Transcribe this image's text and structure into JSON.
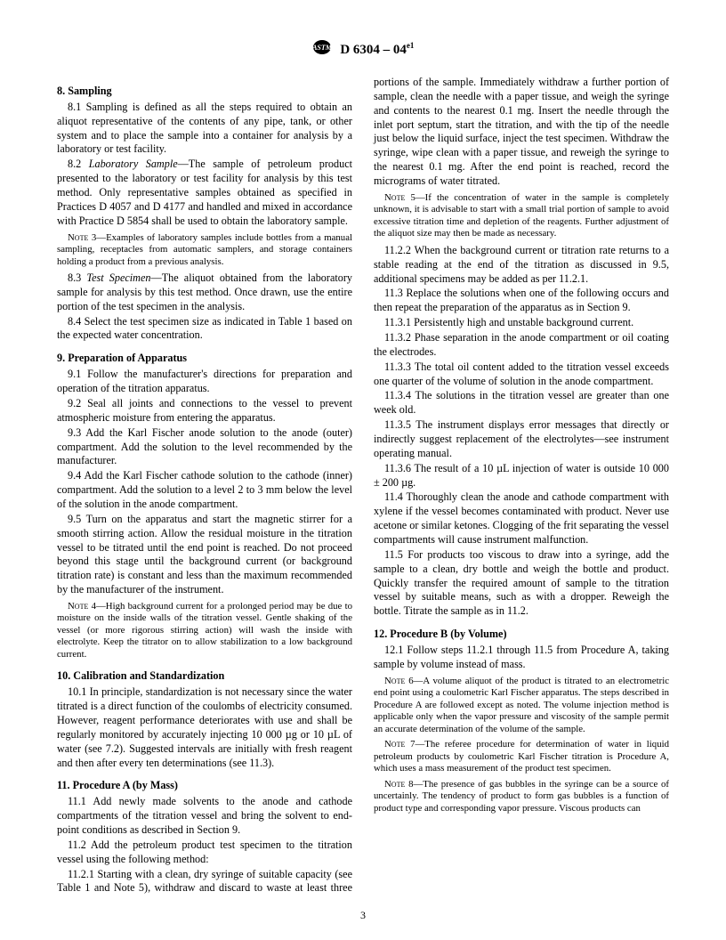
{
  "header": {
    "designation": "D 6304 – 04",
    "superscript": "e1"
  },
  "page_number": "3",
  "sections": [
    {
      "heading": "8. Sampling",
      "paras": [
        {
          "type": "body",
          "text": "8.1 Sampling is defined as all the steps required to obtain an aliquot representative of the contents of any pipe, tank, or other system and to place the sample into a container for analysis by a laboratory or test facility."
        },
        {
          "type": "body",
          "html": "8.2 <span class=\"ital\">Laboratory Sample</span>—The sample of petroleum product presented to the laboratory or test facility for analysis by this test method. Only representative samples obtained as specified in Practices D 4057 and D 4177 and handled and mixed in accordance with Practice D 5854 shall be used to obtain the laboratory sample."
        },
        {
          "type": "note",
          "html": "<span class=\"smallcaps\">Note</span> 3—Examples of laboratory samples include bottles from a manual sampling, receptacles from automatic samplers, and storage containers holding a product from a previous analysis."
        },
        {
          "type": "body",
          "html": "8.3 <span class=\"ital\">Test Specimen</span>—The aliquot obtained from the laboratory sample for analysis by this test method. Once drawn, use the entire portion of the test specimen in the analysis."
        },
        {
          "type": "body",
          "text": "8.4 Select the test specimen size as indicated in Table 1 based on the expected water concentration."
        }
      ]
    },
    {
      "heading": "9. Preparation of Apparatus",
      "paras": [
        {
          "type": "body",
          "text": "9.1 Follow the manufacturer's directions for preparation and operation of the titration apparatus."
        },
        {
          "type": "body",
          "text": "9.2 Seal all joints and connections to the vessel to prevent atmospheric moisture from entering the apparatus."
        },
        {
          "type": "body",
          "text": "9.3 Add the Karl Fischer anode solution to the anode (outer) compartment. Add the solution to the level recommended by the manufacturer."
        },
        {
          "type": "body",
          "text": "9.4 Add the Karl Fischer cathode solution to the cathode (inner) compartment. Add the solution to a level 2 to 3 mm below the level of the solution in the anode compartment."
        },
        {
          "type": "body",
          "text": "9.5 Turn on the apparatus and start the magnetic stirrer for a smooth stirring action. Allow the residual moisture in the titration vessel to be titrated until the end point is reached. Do not proceed beyond this stage until the background current (or background titration rate) is constant and less than the maximum recommended by the manufacturer of the instrument."
        },
        {
          "type": "note",
          "html": "<span class=\"smallcaps\">Note</span> 4—High background current for a prolonged period may be due to moisture on the inside walls of the titration vessel. Gentle shaking of the vessel (or more rigorous stirring action) will wash the inside with electrolyte. Keep the titrator on to allow stabilization to a low background current."
        }
      ]
    },
    {
      "heading": "10. Calibration and Standardization",
      "paras": [
        {
          "type": "body",
          "text": "10.1 In principle, standardization is not necessary since the water titrated is a direct function of the coulombs of electricity consumed. However, reagent performance deteriorates with use and shall be regularly monitored by accurately injecting 10 000 µg or 10 µL of water (see 7.2). Suggested intervals are initially with fresh reagent and then after every ten determinations (see 11.3)."
        }
      ]
    },
    {
      "heading": "11. Procedure A (by Mass)",
      "paras": [
        {
          "type": "body",
          "text": "11.1 Add newly made solvents to the anode and cathode compartments of the titration vessel and bring the solvent to end-point conditions as described in Section 9."
        },
        {
          "type": "body",
          "text": "11.2 Add the petroleum product test specimen to the titration vessel using the following method:"
        },
        {
          "type": "body",
          "text": "11.2.1 Starting with a clean, dry syringe of suitable capacity (see Table 1 and Note 5), withdraw and discard to waste at least three portions of the sample. Immediately withdraw a further portion of sample, clean the needle with a paper tissue, and weigh the syringe and contents to the nearest 0.1 mg. Insert the needle through the inlet port septum, start the titration, and with the tip of the needle just below the liquid surface, inject the test specimen. Withdraw the syringe, wipe clean with a paper tissue, and reweigh the syringe to the nearest 0.1 mg. After the end point is reached, record the micrograms of water titrated."
        },
        {
          "type": "note",
          "html": "<span class=\"smallcaps\">Note</span> 5—If the concentration of water in the sample is completely unknown, it is advisable to start with a small trial portion of sample to avoid excessive titration time and depletion of the reagents. Further adjustment of the aliquot size may then be made as necessary."
        },
        {
          "type": "body",
          "text": "11.2.2 When the background current or titration rate returns to a stable reading at the end of the titration as discussed in 9.5, additional specimens may be added as per 11.2.1."
        },
        {
          "type": "body",
          "text": "11.3 Replace the solutions when one of the following occurs and then repeat the preparation of the apparatus as in Section 9."
        },
        {
          "type": "body",
          "text": "11.3.1 Persistently high and unstable background current."
        },
        {
          "type": "body",
          "text": "11.3.2 Phase separation in the anode compartment or oil coating the electrodes."
        },
        {
          "type": "body",
          "text": "11.3.3 The total oil content added to the titration vessel exceeds one quarter of the volume of solution in the anode compartment."
        },
        {
          "type": "body",
          "text": "11.3.4 The solutions in the titration vessel are greater than one week old."
        },
        {
          "type": "body",
          "text": "11.3.5 The instrument displays error messages that directly or indirectly suggest replacement of the electrolytes—see instrument operating manual."
        },
        {
          "type": "body",
          "text": "11.3.6 The result of a 10 µL injection of water is outside 10 000 ± 200 µg."
        },
        {
          "type": "body",
          "text": "11.4 Thoroughly clean the anode and cathode compartment with xylene if the vessel becomes contaminated with product. Never use acetone or similar ketones. Clogging of the frit separating the vessel compartments will cause instrument malfunction."
        },
        {
          "type": "body",
          "text": "11.5 For products too viscous to draw into a syringe, add the sample to a clean, dry bottle and weigh the bottle and product. Quickly transfer the required amount of sample to the titration vessel by suitable means, such as with a dropper. Reweigh the bottle. Titrate the sample as in 11.2."
        }
      ]
    },
    {
      "heading": "12. Procedure B (by Volume)",
      "paras": [
        {
          "type": "body",
          "text": "12.1 Follow steps 11.2.1 through 11.5 from Procedure A, taking sample by volume instead of mass."
        },
        {
          "type": "note",
          "html": "<span class=\"smallcaps\">Note</span> 6—A volume aliquot of the product is titrated to an electrometric end point using a coulometric Karl Fischer apparatus. The steps described in Procedure A are followed except as noted. The volume injection method is applicable only when the vapor pressure and viscosity of the sample permit an accurate determination of the volume of the sample."
        },
        {
          "type": "note",
          "html": "<span class=\"smallcaps\">Note</span> 7—The referee procedure for determination of water in liquid petroleum products by coulometric Karl Fischer titration is Procedure A, which uses a mass measurement of the product test specimen."
        },
        {
          "type": "note",
          "html": "<span class=\"smallcaps\">Note</span> 8—The presence of gas bubbles in the syringe can be a source of uncertainly. The tendency of product to form gas bubbles is a function of product type and corresponding vapor pressure. Viscous products can"
        }
      ]
    }
  ]
}
